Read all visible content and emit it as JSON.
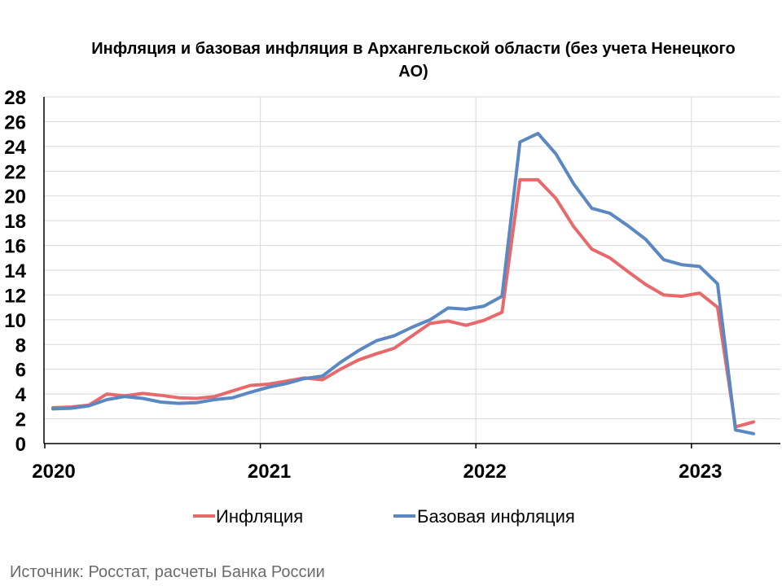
{
  "chart_data": {
    "type": "line",
    "title": "Инфляция и базовая инфляция в Архангельской области (без учета Ненецкого АО)",
    "xlabel": "",
    "ylabel": "",
    "ylim": [
      0,
      28
    ],
    "yticks": [
      0,
      2,
      4,
      6,
      8,
      10,
      12,
      14,
      16,
      18,
      20,
      22,
      24,
      26,
      28
    ],
    "x_tick_labels": [
      "2020",
      "2021",
      "2022",
      "2023"
    ],
    "grid": true,
    "legend_position": "bottom",
    "x": [
      "2020-01",
      "2020-02",
      "2020-03",
      "2020-04",
      "2020-05",
      "2020-06",
      "2020-07",
      "2020-08",
      "2020-09",
      "2020-10",
      "2020-11",
      "2020-12",
      "2021-01",
      "2021-02",
      "2021-03",
      "2021-04",
      "2021-05",
      "2021-06",
      "2021-07",
      "2021-08",
      "2021-09",
      "2021-10",
      "2021-11",
      "2021-12",
      "2022-01",
      "2022-02",
      "2022-03",
      "2022-04",
      "2022-05",
      "2022-06",
      "2022-07",
      "2022-08",
      "2022-09",
      "2022-10",
      "2022-11",
      "2022-12",
      "2023-01",
      "2023-02",
      "2023-03",
      "2023-04"
    ],
    "series": [
      {
        "name": "Инфляция",
        "color": "#E8696B",
        "values": [
          2.9,
          2.95,
          3.1,
          4.0,
          3.85,
          4.05,
          3.9,
          3.7,
          3.65,
          3.8,
          4.25,
          4.7,
          4.8,
          5.05,
          5.3,
          5.15,
          6.0,
          6.75,
          7.25,
          7.7,
          8.7,
          9.7,
          9.9,
          9.55,
          9.95,
          10.6,
          21.3,
          21.3,
          19.8,
          17.5,
          15.7,
          15.0,
          13.9,
          12.85,
          12.0,
          11.9,
          12.15,
          11.0,
          1.35,
          1.75
        ]
      },
      {
        "name": "Базовая инфляция",
        "color": "#5B88C2",
        "values": [
          2.8,
          2.85,
          3.05,
          3.55,
          3.8,
          3.65,
          3.35,
          3.25,
          3.3,
          3.55,
          3.7,
          4.15,
          4.55,
          4.85,
          5.25,
          5.45,
          6.55,
          7.5,
          8.3,
          8.7,
          9.4,
          10.0,
          10.95,
          10.85,
          11.1,
          11.9,
          24.35,
          25.05,
          23.4,
          20.95,
          19.0,
          18.6,
          17.6,
          16.5,
          14.85,
          14.45,
          14.3,
          12.9,
          1.1,
          0.8
        ]
      }
    ]
  },
  "source": "Источник: Росстат, расчеты Банка России"
}
